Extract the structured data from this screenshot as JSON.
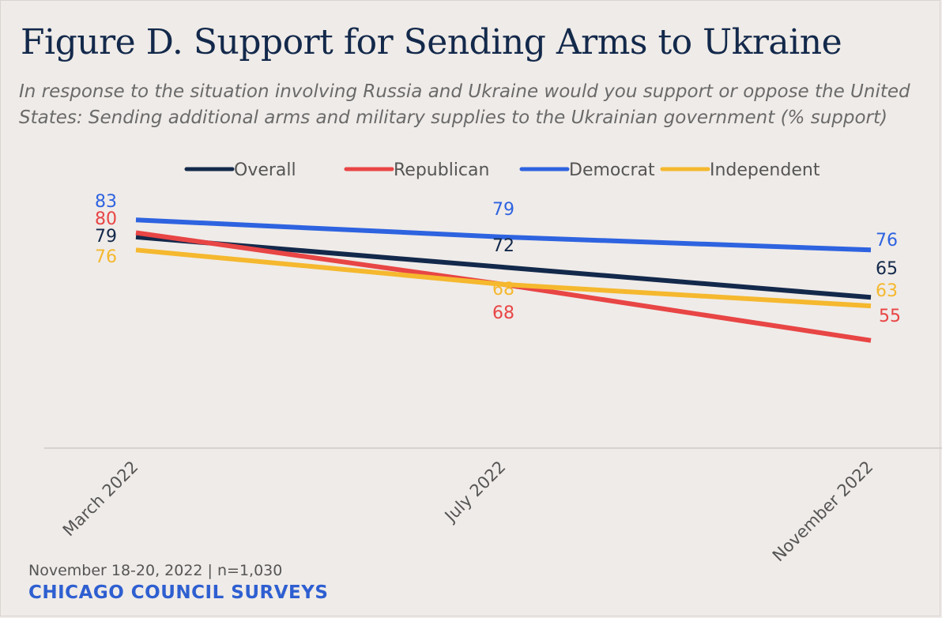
{
  "chart_data": {
    "type": "line",
    "title": "Figure D. Support for Sending Arms to Ukraine",
    "subtitle": "In response to the situation involving Russia and Ukraine would you support or oppose the United States: Sending additional arms and military supplies to the Ukrainian government (% support)",
    "categories": [
      "March 2022",
      "July 2022",
      "November 2022"
    ],
    "series": [
      {
        "name": "Overall",
        "color": "#13294b",
        "values": [
          79,
          72,
          65
        ]
      },
      {
        "name": "Republican",
        "color": "#e84545",
        "values": [
          80,
          68,
          55
        ]
      },
      {
        "name": "Democrat",
        "color": "#2e63e0",
        "values": [
          83,
          79,
          76
        ]
      },
      {
        "name": "Independent",
        "color": "#f5b82e",
        "values": [
          76,
          68,
          63
        ]
      }
    ],
    "xlabel": "",
    "ylabel": "",
    "ylim": [
      30,
      90
    ],
    "legend": "top-center",
    "grid": false
  },
  "footer": {
    "meta": "November 18-20, 2022 | n=1,030",
    "brand": "CHICAGO COUNCIL SURVEYS"
  }
}
